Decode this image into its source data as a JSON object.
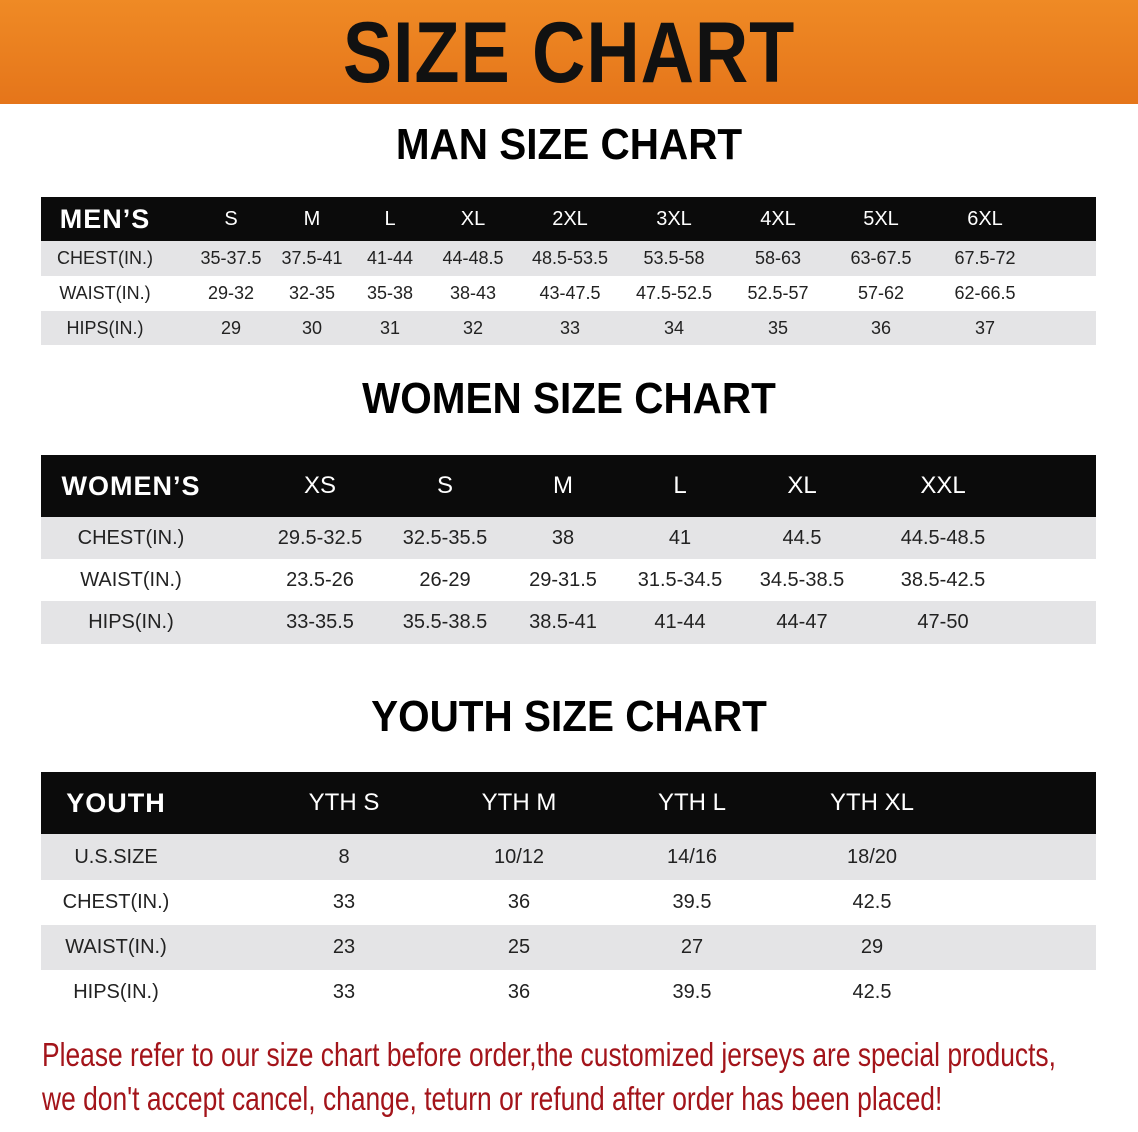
{
  "banner_title": "SIZE CHART",
  "men": {
    "title": "MAN SIZE CHART",
    "header": [
      "MEN’S",
      "S",
      "M",
      "L",
      "XL",
      "2XL",
      "3XL",
      "4XL",
      "5XL",
      "6XL"
    ],
    "rows": [
      [
        "CHEST(IN.)",
        "35-37.5",
        "37.5-41",
        "41-44",
        "44-48.5",
        "48.5-53.5",
        "53.5-58",
        "58-63",
        "63-67.5",
        "67.5-72"
      ],
      [
        "WAIST(IN.)",
        "29-32",
        "32-35",
        "35-38",
        "38-43",
        "43-47.5",
        "47.5-52.5",
        "52.5-57",
        "57-62",
        "62-66.5"
      ],
      [
        "HIPS(IN.)",
        "29",
        "30",
        "31",
        "32",
        "33",
        "34",
        "35",
        "36",
        "37"
      ]
    ]
  },
  "women": {
    "title": "WOMEN SIZE CHART",
    "header": [
      "WOMEN’S",
      "XS",
      "S",
      "M",
      "L",
      "XL",
      "XXL"
    ],
    "rows": [
      [
        "CHEST(IN.)",
        "29.5-32.5",
        "32.5-35.5",
        "38",
        "41",
        "44.5",
        "44.5-48.5"
      ],
      [
        "WAIST(IN.)",
        "23.5-26",
        "26-29",
        "29-31.5",
        "31.5-34.5",
        "34.5-38.5",
        "38.5-42.5"
      ],
      [
        "HIPS(IN.)",
        "33-35.5",
        "35.5-38.5",
        "38.5-41",
        "41-44",
        "44-47",
        "47-50"
      ]
    ]
  },
  "youth": {
    "title": "YOUTH SIZE CHART",
    "header": [
      "YOUTH",
      "YTH S",
      "YTH M",
      "YTH L",
      "YTH XL"
    ],
    "rows": [
      [
        "U.S.SIZE",
        "8",
        "10/12",
        "14/16",
        "18/20"
      ],
      [
        "CHEST(IN.)",
        "33",
        "36",
        "39.5",
        "42.5"
      ],
      [
        "WAIST(IN.)",
        "23",
        "25",
        "27",
        "29"
      ],
      [
        "HIPS(IN.)",
        "33",
        "36",
        "39.5",
        "42.5"
      ]
    ]
  },
  "footer": {
    "line1": "Please refer to our size chart before order,the customized jerseys are special products,",
    "line2": "we don't accept cancel, change, teturn or refund after order has been placed!"
  },
  "colors": {
    "banner": "#e97d1f",
    "header_row": "#0b0b0b",
    "stripe": "#e4e4e6",
    "notice": "#a3141a"
  }
}
